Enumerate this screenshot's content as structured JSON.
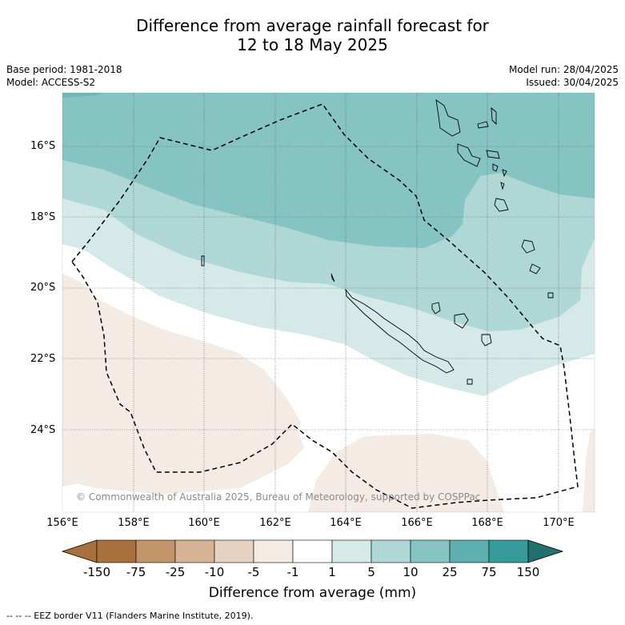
{
  "title": {
    "line1": "Difference from average rainfall forecast for",
    "line2": "12 to 18 May 2025"
  },
  "meta": {
    "base_period": "Base period: 1981-2018",
    "model": "Model: ACCESS-S2",
    "model_run": "Model run: 28/04/2025",
    "issued": "Issued: 30/04/2025"
  },
  "axes": {
    "lat_labels": [
      "16°S",
      "18°S",
      "20°S",
      "22°S",
      "24°S"
    ],
    "lon_labels": [
      "156°E",
      "158°E",
      "160°E",
      "162°E",
      "164°E",
      "166°E",
      "168°E",
      "170°E"
    ]
  },
  "copyright": "© Commonwealth of Australia 2025, Bureau of Meteorology, supported by COSPPac",
  "colorbar": {
    "title": "Difference from average (mm)",
    "ticks": [
      "-150",
      "-75",
      "-25",
      "-10",
      "-5",
      "-1",
      "1",
      "5",
      "10",
      "25",
      "75",
      "150"
    ],
    "colors": [
      "#a7703c",
      "#c1946a",
      "#d5b394",
      "#e6d2c0",
      "#f4ebe4",
      "#ffffff",
      "#d5e9e8",
      "#aed7d6",
      "#86c4c3",
      "#5eb0b0",
      "#379b99",
      "#226f6e"
    ]
  },
  "legend_note": "--  --  -- EEZ border V11 (Flanders Marine Institute, 2019)."
}
